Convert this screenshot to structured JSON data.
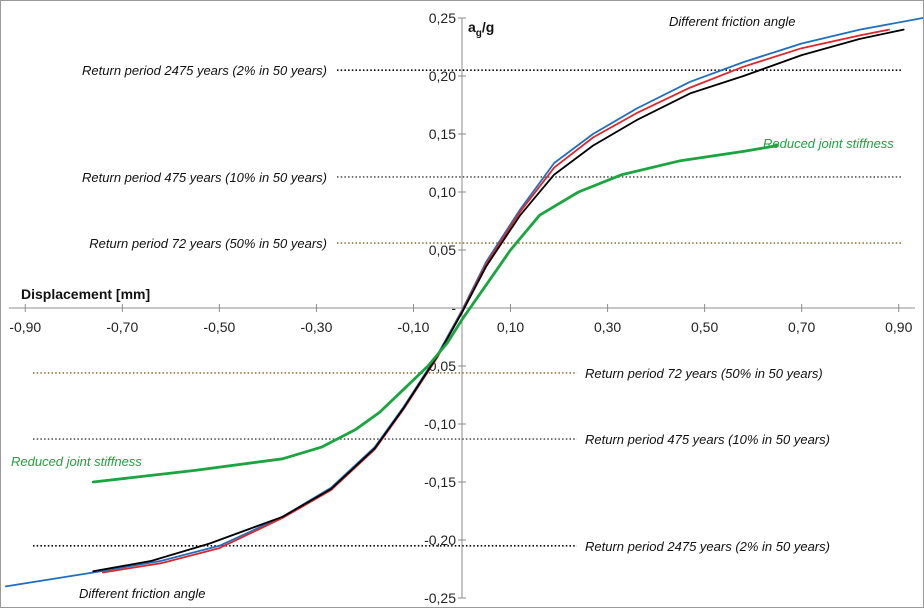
{
  "chart_data": {
    "type": "line",
    "title": "",
    "xlabel": "Displacement [mm]",
    "ylabel_main": "a",
    "ylabel_sub": "g",
    "ylabel_tail": "/g",
    "xlim": [
      -0.95,
      0.95
    ],
    "ylim": [
      -0.25,
      0.25
    ],
    "grid": false,
    "x_ticks": [
      {
        "value": -0.9,
        "label": "-0,90"
      },
      {
        "value": -0.7,
        "label": "-0,70"
      },
      {
        "value": -0.5,
        "label": "-0,50"
      },
      {
        "value": -0.3,
        "label": "-0,30"
      },
      {
        "value": -0.1,
        "label": "-0,10"
      },
      {
        "value": 0.1,
        "label": "0,10"
      },
      {
        "value": 0.3,
        "label": "0,30"
      },
      {
        "value": 0.5,
        "label": "0,50"
      },
      {
        "value": 0.7,
        "label": "0,70"
      },
      {
        "value": 0.9,
        "label": "0,90"
      }
    ],
    "y_ticks": [
      {
        "value": 0.25,
        "label": "0,25"
      },
      {
        "value": 0.2,
        "label": "0,20"
      },
      {
        "value": 0.15,
        "label": "0,15"
      },
      {
        "value": 0.1,
        "label": "0,10"
      },
      {
        "value": 0.05,
        "label": "0,05"
      },
      {
        "value": 0,
        "label": "-"
      },
      {
        "value": -0.05,
        "label": "-0,05"
      },
      {
        "value": -0.1,
        "label": "-0,10"
      },
      {
        "value": -0.15,
        "label": "-0,15"
      },
      {
        "value": -0.2,
        "label": "-0,20"
      },
      {
        "value": -0.25,
        "label": "-0,25"
      }
    ],
    "reference_lines": [
      {
        "y": 0.205,
        "color": "#000000",
        "label": "Return period 2475 years (2% in 50 years)",
        "side": "left"
      },
      {
        "y": 0.113,
        "color": "#555555",
        "label": "Return period 475 years (10% in 50 years)",
        "side": "left"
      },
      {
        "y": 0.056,
        "color": "#8a7a3a",
        "label": "Return period 72 years (50% in 50 years)",
        "side": "left"
      },
      {
        "y": -0.056,
        "color": "#8a7a3a",
        "label": "Return period 72 years (50% in 50 years)",
        "side": "right"
      },
      {
        "y": -0.113,
        "color": "#555555",
        "label": "Return period 475 years (10% in 50 years)",
        "side": "right"
      },
      {
        "y": -0.205,
        "color": "#000000",
        "label": "Return period 2475 years (2% in 50 years)",
        "side": "right"
      }
    ],
    "series": [
      {
        "color": "#1f6fbf",
        "width": 1.8,
        "x": [
          -0.94,
          -0.76,
          -0.62,
          -0.5,
          -0.37,
          -0.27,
          -0.18,
          -0.12,
          -0.05,
          0,
          0.05,
          0.12,
          0.19,
          0.27,
          0.36,
          0.47,
          0.58,
          0.7,
          0.82,
          0.95
        ],
        "y": [
          -0.24,
          -0.228,
          -0.218,
          -0.205,
          -0.18,
          -0.155,
          -0.12,
          -0.085,
          -0.04,
          -0.002,
          0.04,
          0.085,
          0.125,
          0.15,
          0.172,
          0.195,
          0.212,
          0.228,
          0.24,
          0.25
        ]
      },
      {
        "color": "#e0262a",
        "width": 1.8,
        "x": [
          -0.74,
          -0.62,
          -0.5,
          -0.37,
          -0.27,
          -0.18,
          -0.12,
          -0.05,
          0,
          0.05,
          0.12,
          0.19,
          0.27,
          0.36,
          0.47,
          0.58,
          0.7,
          0.82,
          0.88
        ],
        "y": [
          -0.228,
          -0.22,
          -0.207,
          -0.181,
          -0.157,
          -0.122,
          -0.087,
          -0.042,
          -0.003,
          0.038,
          0.083,
          0.121,
          0.147,
          0.168,
          0.19,
          0.208,
          0.224,
          0.235,
          0.24
        ]
      },
      {
        "color": "#000000",
        "width": 1.8,
        "x": [
          -0.76,
          -0.64,
          -0.52,
          -0.37,
          -0.27,
          -0.18,
          -0.12,
          -0.05,
          0,
          0.05,
          0.12,
          0.19,
          0.27,
          0.36,
          0.47,
          0.58,
          0.7,
          0.82,
          0.91
        ],
        "y": [
          -0.227,
          -0.218,
          -0.203,
          -0.18,
          -0.156,
          -0.121,
          -0.086,
          -0.041,
          -0.004,
          0.036,
          0.08,
          0.115,
          0.14,
          0.162,
          0.185,
          0.2,
          0.218,
          0.232,
          0.24
        ]
      },
      {
        "color": "#1aa53f",
        "width": 2.8,
        "x": [
          -0.76,
          -0.55,
          -0.37,
          -0.29,
          -0.22,
          -0.17,
          -0.12,
          -0.07,
          -0.03,
          0,
          0.05,
          0.1,
          0.16,
          0.24,
          0.33,
          0.45,
          0.58,
          0.65
        ],
        "y": [
          -0.15,
          -0.14,
          -0.13,
          -0.12,
          -0.105,
          -0.09,
          -0.07,
          -0.05,
          -0.03,
          -0.01,
          0.02,
          0.05,
          0.08,
          0.1,
          0.115,
          0.127,
          0.135,
          0.14
        ]
      }
    ],
    "annotations": [
      {
        "text": "Different friction angle",
        "color": "#111111",
        "position": "top-right"
      },
      {
        "text": "Different friction angle",
        "color": "#111111",
        "position": "bottom-left"
      },
      {
        "text": "Reduced joint stiffness",
        "color": "#1aa53f",
        "position": "right"
      },
      {
        "text": "Reduced joint stiffness",
        "color": "#1aa53f",
        "position": "left"
      }
    ]
  }
}
